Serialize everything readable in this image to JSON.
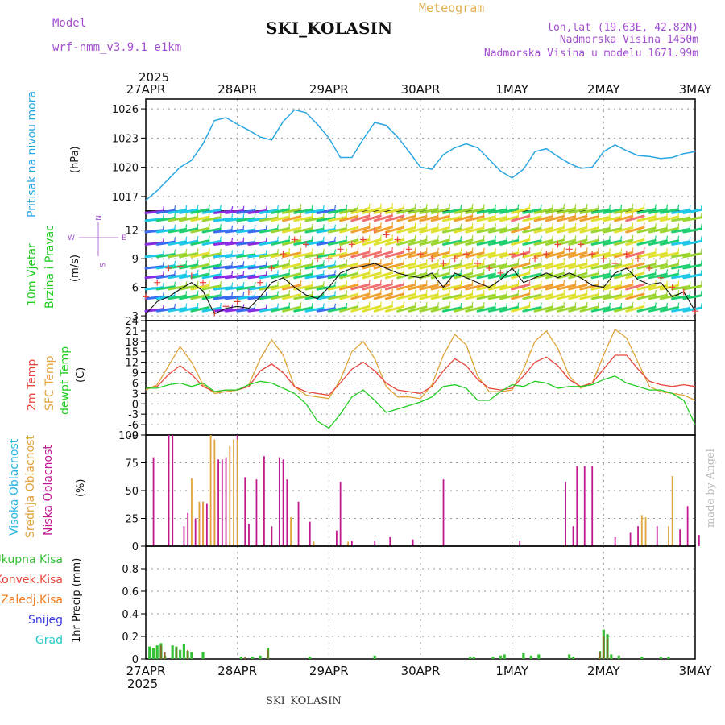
{
  "header": {
    "model_label": "Model",
    "model_name": "wrf-nmm_v3.9.1 e1km",
    "product": "Meteogram",
    "station": "SKI_KOLASIN",
    "lonlat": "lon,lat (19.63E, 42.82N)",
    "altitude": "Nadmorska Visina 1450m",
    "model_altitude": "Nadmorska Visina u modelu 1671.99m",
    "footer_station": "SKI_KOLASIN",
    "credit": "made by Angel"
  },
  "time_axis": {
    "year": "2025",
    "days": [
      "27APR",
      "28APR",
      "29APR",
      "30APR",
      "1MAY",
      "2MAY",
      "3MAY"
    ],
    "hours_total": 144
  },
  "colors": {
    "pressure": "#2aa6e0",
    "temp_2m": "#e8463c",
    "temp_sfc": "#e0a43a",
    "dewpoint": "#22cc22",
    "high_cloud": "#28b4e0",
    "mid_cloud": "#e0a43a",
    "low_cloud": "#c0188f",
    "total_precip": "#36c036",
    "conv_precip": "#e8463c",
    "frozen_precip": "#ee7a22",
    "snow": "#3c3ce0",
    "graupel": "#28c8c8",
    "wind_speed": "#111111",
    "gust": "#e8463c",
    "labels_purple": "#a24fcf",
    "meteogram_label": "#e0b050"
  },
  "chart_data": [
    {
      "type": "line",
      "name": "pressure",
      "ylabel_main": "Pritisak na nivou mora",
      "unit": "(hPa)",
      "ylim": [
        1015.5,
        1027
      ],
      "yticks": [
        1017,
        1020,
        1023,
        1026
      ],
      "x_hours": [
        0,
        3,
        6,
        9,
        12,
        15,
        18,
        21,
        24,
        27,
        30,
        33,
        36,
        39,
        42,
        45,
        48,
        51,
        54,
        57,
        60,
        63,
        66,
        69,
        72,
        75,
        78,
        81,
        84,
        87,
        90,
        93,
        96,
        99,
        102,
        105,
        108,
        111,
        114,
        117,
        120,
        123,
        126,
        129,
        132,
        135,
        138,
        141,
        144
      ],
      "values": [
        1016.6,
        1017.6,
        1018.8,
        1020.0,
        1020.7,
        1022.4,
        1024.8,
        1025.1,
        1024.4,
        1023.8,
        1023.1,
        1022.8,
        1024.7,
        1025.9,
        1025.6,
        1024.4,
        1023.0,
        1021.0,
        1021.0,
        1022.9,
        1024.6,
        1024.3,
        1023.1,
        1021.6,
        1020.0,
        1019.8,
        1021.3,
        1022.0,
        1022.4,
        1022.0,
        1020.8,
        1019.6,
        1018.9,
        1019.8,
        1021.6,
        1021.9,
        1021.1,
        1020.4,
        1019.9,
        1020.0,
        1021.6,
        1022.3,
        1021.7,
        1021.2,
        1021.1,
        1020.9,
        1021.0,
        1021.4,
        1021.6
      ]
    },
    {
      "type": "line",
      "name": "wind",
      "ylabel_main": "10m Vjetar",
      "ylabel_sub": "Brzina i Pravac",
      "unit": "(m/s)",
      "compass": {
        "n": "N",
        "s": "S",
        "w": "W",
        "e": "E"
      },
      "ylim": [
        2.5,
        14
      ],
      "yticks": [
        3,
        6,
        9,
        12
      ],
      "x_hours": [
        0,
        3,
        6,
        9,
        12,
        15,
        18,
        21,
        24,
        27,
        30,
        33,
        36,
        39,
        42,
        45,
        48,
        51,
        54,
        57,
        60,
        63,
        66,
        69,
        72,
        75,
        78,
        81,
        84,
        87,
        90,
        93,
        96,
        99,
        102,
        105,
        108,
        111,
        114,
        117,
        120,
        123,
        126,
        129,
        132,
        135,
        138,
        141,
        144
      ],
      "speed": [
        3.2,
        4.5,
        5.0,
        5.8,
        6.5,
        5.6,
        3.2,
        3.8,
        4.0,
        3.8,
        5.0,
        6.5,
        7.0,
        6.0,
        5.2,
        4.8,
        6.0,
        7.5,
        8.0,
        8.2,
        8.5,
        8.0,
        7.5,
        7.2,
        7.0,
        7.5,
        6.0,
        7.5,
        7.0,
        6.5,
        6.0,
        6.8,
        8.0,
        6.5,
        7.0,
        7.5,
        7.0,
        7.5,
        7.0,
        6.2,
        6.0,
        7.5,
        8.0,
        6.8,
        6.3,
        6.5,
        5.0,
        5.5,
        3.5
      ],
      "gust": [
        5.0,
        6.5,
        8.0,
        8.2,
        7.2,
        6.5,
        3.3,
        4.0,
        4.5,
        5.5,
        6.5,
        8.0,
        9.5,
        11.0,
        10.5,
        9.0,
        9.0,
        10.0,
        10.5,
        11.0,
        12.0,
        11.5,
        11.0,
        10.0,
        9.5,
        9.0,
        8.5,
        9.0,
        9.5,
        8.5,
        8.0,
        7.5,
        9.5,
        9.5,
        9.0,
        9.5,
        10.5,
        10.0,
        10.5,
        9.5,
        9.0,
        8.5,
        9.5,
        9.0,
        8.0,
        7.0,
        6.0,
        5.5,
        3.5
      ]
    },
    {
      "type": "line",
      "name": "temperature",
      "ylabel_a": "2m Temp",
      "ylabel_b": "SFC Temp",
      "ylabel_c": "dewpt Temp",
      "unit": "(C)",
      "ylim": [
        -9,
        24
      ],
      "yticks": [
        -9,
        -6,
        -3,
        0,
        3,
        6,
        9,
        12,
        15,
        18,
        21,
        24
      ],
      "x_hours": [
        0,
        3,
        6,
        9,
        12,
        15,
        18,
        21,
        24,
        27,
        30,
        33,
        36,
        39,
        42,
        45,
        48,
        51,
        54,
        57,
        60,
        63,
        66,
        69,
        72,
        75,
        78,
        81,
        84,
        87,
        90,
        93,
        96,
        99,
        102,
        105,
        108,
        111,
        114,
        117,
        120,
        123,
        126,
        129,
        132,
        135,
        138,
        141,
        144
      ],
      "t2m": [
        4.5,
        5.0,
        8.5,
        11.0,
        8.5,
        5.0,
        3.5,
        4.0,
        4.0,
        5.0,
        9.5,
        11.5,
        9.0,
        5.0,
        3.5,
        3.0,
        2.5,
        6.0,
        10.0,
        12.0,
        9.5,
        6.0,
        4.0,
        3.5,
        3.0,
        5.0,
        9.5,
        13.0,
        11.0,
        7.0,
        4.5,
        4.0,
        4.5,
        8.0,
        12.0,
        13.5,
        11.0,
        7.0,
        5.0,
        6.0,
        10.0,
        14.0,
        14.0,
        10.0,
        6.5,
        5.5,
        5.0,
        5.5,
        5.0
      ],
      "tsfc": [
        4.0,
        5.5,
        11.0,
        16.5,
        12.0,
        5.5,
        3.0,
        3.5,
        4.0,
        5.5,
        13.0,
        18.5,
        14.0,
        5.0,
        2.5,
        2.0,
        1.5,
        7.0,
        15.0,
        18.0,
        13.0,
        5.0,
        2.0,
        2.0,
        1.5,
        5.5,
        14.0,
        20.0,
        17.0,
        8.0,
        3.5,
        3.5,
        4.0,
        10.0,
        18.0,
        21.0,
        16.0,
        8.0,
        4.5,
        6.0,
        14.0,
        21.5,
        19.0,
        12.0,
        5.0,
        3.5,
        3.0,
        2.5,
        1.0
      ],
      "dewpt": [
        4.5,
        4.5,
        5.5,
        6.0,
        5.0,
        6.0,
        3.5,
        4.0,
        4.0,
        5.5,
        6.5,
        6.0,
        4.5,
        3.0,
        0.0,
        -5.0,
        -7.0,
        -3.0,
        2.0,
        4.0,
        1.0,
        -2.5,
        -1.5,
        -0.5,
        0.5,
        2.0,
        5.0,
        5.5,
        4.5,
        1.0,
        1.0,
        3.5,
        5.5,
        5.0,
        6.5,
        6.0,
        4.5,
        5.0,
        5.0,
        5.5,
        7.0,
        8.0,
        6.0,
        5.0,
        4.0,
        4.0,
        3.0,
        1.0,
        -6.0
      ]
    },
    {
      "type": "bar",
      "name": "cloud",
      "ylabel_a": "Visoka Oblacnost",
      "ylabel_b": "Srednja Oblacnost",
      "ylabel_c": "Niska Oblacnost",
      "unit": "(%)",
      "ylim": [
        0,
        100
      ],
      "yticks": [
        0,
        25,
        50,
        75,
        100
      ],
      "low": [
        [
          2,
          80
        ],
        [
          6,
          100
        ],
        [
          7,
          100
        ],
        [
          10,
          18
        ],
        [
          11,
          30
        ],
        [
          13,
          25
        ],
        [
          14,
          38
        ],
        [
          15,
          40
        ],
        [
          16,
          38
        ],
        [
          18,
          50
        ],
        [
          19,
          78
        ],
        [
          20,
          78
        ],
        [
          21,
          80
        ],
        [
          24,
          100
        ],
        [
          26,
          62
        ],
        [
          27,
          20
        ],
        [
          29,
          60
        ],
        [
          31,
          81
        ],
        [
          33,
          18
        ],
        [
          35,
          80
        ],
        [
          36,
          78
        ],
        [
          37,
          60
        ],
        [
          40,
          40
        ],
        [
          43,
          22
        ],
        [
          50,
          14
        ],
        [
          51,
          58
        ],
        [
          54,
          5
        ],
        [
          60,
          5
        ],
        [
          64,
          8
        ],
        [
          70,
          6
        ],
        [
          78,
          60
        ],
        [
          98,
          5
        ],
        [
          110,
          58
        ],
        [
          112,
          18
        ],
        [
          113,
          72
        ],
        [
          115,
          72
        ],
        [
          117,
          72
        ],
        [
          123,
          8
        ],
        [
          127,
          12
        ],
        [
          129,
          18
        ],
        [
          134,
          18
        ],
        [
          140,
          15
        ],
        [
          142,
          36
        ],
        [
          145,
          10
        ]
      ],
      "mid": [
        [
          12,
          61
        ],
        [
          14,
          40
        ],
        [
          15,
          40
        ],
        [
          17,
          100
        ],
        [
          18,
          96
        ],
        [
          22,
          90
        ],
        [
          23,
          96
        ],
        [
          24,
          96
        ],
        [
          38,
          26
        ],
        [
          44,
          4
        ],
        [
          53,
          4
        ],
        [
          130,
          28
        ],
        [
          131,
          26
        ],
        [
          137,
          18
        ],
        [
          138,
          63
        ]
      ],
      "high": []
    },
    {
      "type": "bar",
      "name": "precip",
      "ylabel_a": "Ukupna Kisa",
      "ylabel_b": "Konvek.Kisa",
      "ylabel_c": "Zaledj.Kisa",
      "ylabel_d": "Snijeg",
      "ylabel_e": "Grad",
      "unit": "1hr Precip (mm)",
      "ylim": [
        0,
        1.0
      ],
      "yticks": [
        0,
        0.2,
        0.4,
        0.6,
        0.8
      ],
      "total": [
        [
          1,
          0.11
        ],
        [
          2,
          0.1
        ],
        [
          3,
          0.12
        ],
        [
          4,
          0.14
        ],
        [
          5,
          0.03
        ],
        [
          7,
          0.12
        ],
        [
          8,
          0.11
        ],
        [
          9,
          0.08
        ],
        [
          10,
          0.13
        ],
        [
          11,
          0.07
        ],
        [
          12,
          0.06
        ],
        [
          15,
          0.06
        ],
        [
          25,
          0.02
        ],
        [
          28,
          0.02
        ],
        [
          30,
          0.03
        ],
        [
          32,
          0.1
        ],
        [
          43,
          0.02
        ],
        [
          60,
          0.03
        ],
        [
          85,
          0.02
        ],
        [
          86,
          0.02
        ],
        [
          91,
          0.02
        ],
        [
          93,
          0.03
        ],
        [
          94,
          0.04
        ],
        [
          99,
          0.05
        ],
        [
          101,
          0.03
        ],
        [
          103,
          0.04
        ],
        [
          111,
          0.04
        ],
        [
          112,
          0.02
        ],
        [
          119,
          0.07
        ],
        [
          120,
          0.26
        ],
        [
          121,
          0.22
        ],
        [
          122,
          0.04
        ],
        [
          124,
          0.03
        ],
        [
          130,
          0.02
        ],
        [
          135,
          0.02
        ],
        [
          137,
          0.02
        ]
      ],
      "conv": [
        [
          4,
          0.12
        ],
        [
          5,
          0.06
        ],
        [
          8,
          0.1
        ],
        [
          11,
          0.08
        ],
        [
          26,
          0.02
        ],
        [
          32,
          0.08
        ],
        [
          119,
          0.06
        ],
        [
          120,
          0.2
        ],
        [
          121,
          0.18
        ]
      ]
    }
  ]
}
